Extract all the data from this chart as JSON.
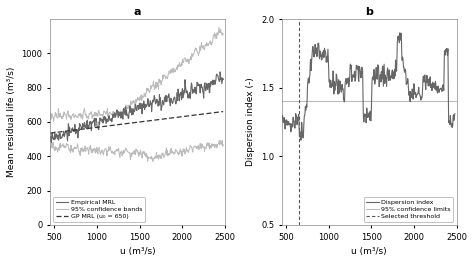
{
  "panel_a": {
    "title": "a",
    "xlabel": "u (m³/s)",
    "ylabel": "Mean residual life (m³/s)",
    "xlim": [
      450,
      2500
    ],
    "ylim": [
      0,
      1200
    ],
    "xticks": [
      500,
      1000,
      1500,
      2000,
      2500
    ],
    "yticks": [
      0,
      200,
      400,
      600,
      800,
      1000
    ],
    "empirical_color": "#666666",
    "band_color": "#bbbbbb",
    "gp_color": "#333333",
    "legend_items": [
      "Empirical MRL",
      "95% confidence bands",
      "GP MRL (u₀ = 650)"
    ]
  },
  "panel_b": {
    "title": "b",
    "xlabel": "u (m³/s)",
    "ylabel": "Dispersion index (-)",
    "xlim": [
      450,
      2500
    ],
    "ylim": [
      0.5,
      2.0
    ],
    "xticks": [
      500,
      1000,
      1500,
      2000,
      2500
    ],
    "yticks": [
      0.5,
      1.0,
      1.5,
      2.0
    ],
    "disp_color": "#666666",
    "ci_color": "#bbbbbb",
    "threshold": 650,
    "ci_level": 1.4,
    "legend_items": [
      "Dispersion index",
      "95% confidence limits",
      "Selected threshold"
    ]
  }
}
